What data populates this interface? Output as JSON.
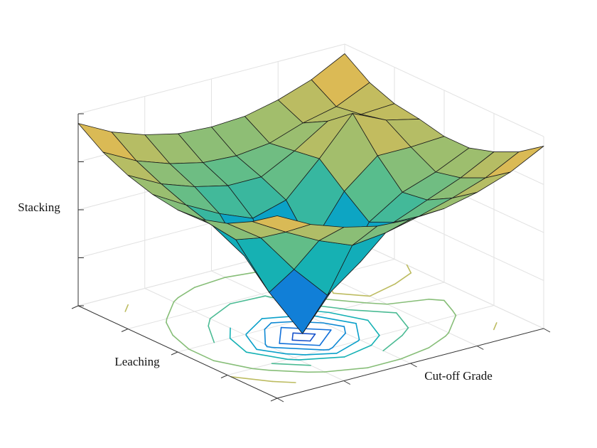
{
  "chart_data": {
    "type": "surface",
    "x_label": "Cut-off Grade",
    "y_label": "Leaching",
    "z_label": "Stacking",
    "x": [
      -1,
      -0.75,
      -0.5,
      -0.25,
      0,
      0.25,
      0.5,
      0.75,
      1
    ],
    "y": [
      -1,
      -0.75,
      -0.5,
      -0.25,
      0,
      0.25,
      0.5,
      0.75,
      1
    ],
    "z": [
      [
        0.95,
        0.86,
        0.8,
        0.76,
        0.75,
        0.76,
        0.8,
        0.86,
        0.95
      ],
      [
        0.86,
        0.76,
        0.67,
        0.6,
        0.62,
        0.66,
        0.71,
        0.77,
        0.86
      ],
      [
        0.79,
        0.67,
        0.46,
        0.28,
        0.41,
        0.57,
        0.64,
        0.71,
        0.8
      ],
      [
        0.75,
        0.6,
        0.28,
        0.02,
        0.23,
        0.51,
        0.62,
        0.68,
        0.76
      ],
      [
        0.74,
        0.62,
        0.41,
        0.23,
        0.37,
        0.61,
        0.75,
        0.75,
        0.76
      ],
      [
        0.76,
        0.66,
        0.57,
        0.5,
        0.55,
        0.72,
        0.91,
        0.83,
        0.79
      ],
      [
        0.8,
        0.71,
        0.65,
        0.61,
        0.61,
        0.7,
        0.81,
        0.8,
        0.81
      ],
      [
        0.86,
        0.77,
        0.71,
        0.67,
        0.66,
        0.68,
        0.74,
        0.78,
        0.86
      ],
      [
        0.95,
        0.86,
        0.8,
        0.76,
        0.75,
        0.76,
        0.8,
        0.86,
        0.95
      ]
    ],
    "xlim": [
      -1,
      1
    ],
    "ylim": [
      -1,
      1
    ],
    "zlim": [
      0,
      1
    ],
    "xticks": [
      -1,
      -0.5,
      0,
      0.5,
      1
    ],
    "yticks": [
      -1,
      -0.5,
      0,
      0.5,
      1
    ],
    "zticks": [
      0,
      0.25,
      0.5,
      0.75,
      1
    ],
    "grid": true,
    "colormap": "parula",
    "edge_color": "#1a1a1a",
    "contour_levels": [
      0.1,
      0.2,
      0.3,
      0.4,
      0.5,
      0.6,
      0.7,
      0.8
    ]
  }
}
